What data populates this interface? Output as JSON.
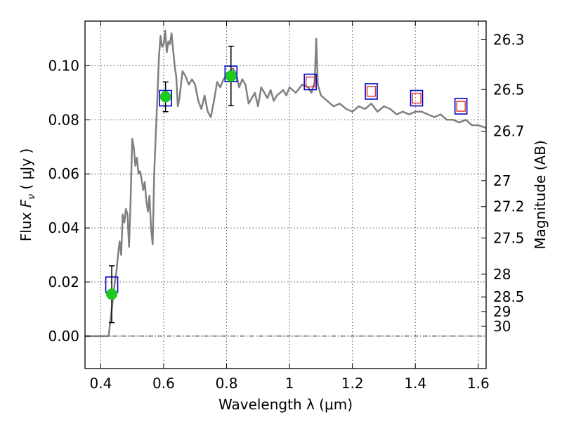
{
  "chart_data": {
    "type": "line",
    "xlabel": "Wavelength  λ (μm)",
    "ylabel": {
      "prefix": "Flux  ",
      "math": "F",
      "sub": "ν",
      "suffix": "  ( μJy )"
    },
    "y2label": "Magnitude (AB)",
    "xlim": [
      0.35,
      1.625
    ],
    "ylim": [
      -0.012,
      0.1165
    ],
    "grid": true,
    "x_ticks": [
      {
        "value": 0.4,
        "label": "0.4"
      },
      {
        "value": 0.6,
        "label": "0.6"
      },
      {
        "value": 0.8,
        "label": "0.8"
      },
      {
        "value": 1.0,
        "label": "1"
      },
      {
        "value": 1.2,
        "label": "1.2"
      },
      {
        "value": 1.4,
        "label": "1.4"
      },
      {
        "value": 1.6,
        "label": "1.6"
      }
    ],
    "y_ticks": [
      {
        "value": 0.0,
        "label": "0.00"
      },
      {
        "value": 0.02,
        "label": "0.02"
      },
      {
        "value": 0.04,
        "label": "0.04"
      },
      {
        "value": 0.06,
        "label": "0.06"
      },
      {
        "value": 0.08,
        "label": "0.08"
      },
      {
        "value": 0.1,
        "label": "0.10"
      }
    ],
    "y2_ticks": [
      {
        "label": "26.3",
        "flux": 0.1096
      },
      {
        "label": "26.5",
        "flux": 0.0912
      },
      {
        "label": "26.7",
        "flux": 0.0758
      },
      {
        "label": "27",
        "flux": 0.0575
      },
      {
        "label": "27.2",
        "flux": 0.0479
      },
      {
        "label": "27.5",
        "flux": 0.0363
      },
      {
        "label": "28",
        "flux": 0.0229
      },
      {
        "label": "28.5",
        "flux": 0.0145
      },
      {
        "label": "29",
        "flux": 0.0091
      },
      {
        "label": "30",
        "flux": 0.0036
      }
    ],
    "colors": {
      "model_line": "#808080",
      "observed": "#1ec81e",
      "model_box": "#0000cc",
      "model_box_inner": "#e03030",
      "error_bar": "#000000",
      "grid": "#555555"
    },
    "series": [
      {
        "type": "line",
        "x": [
          0.35,
          0.425,
          0.43,
          0.435,
          0.44,
          0.445,
          0.45,
          0.455,
          0.46,
          0.465,
          0.47,
          0.475,
          0.48,
          0.485,
          0.49,
          0.495,
          0.5,
          0.505,
          0.51,
          0.515,
          0.52,
          0.525,
          0.53,
          0.535,
          0.54,
          0.545,
          0.55,
          0.555,
          0.56,
          0.565,
          0.57,
          0.575,
          0.58,
          0.585,
          0.59,
          0.595,
          0.6,
          0.605,
          0.61,
          0.615,
          0.62,
          0.625,
          0.63,
          0.635,
          0.64,
          0.645,
          0.65,
          0.66,
          0.67,
          0.68,
          0.69,
          0.7,
          0.71,
          0.72,
          0.73,
          0.74,
          0.75,
          0.76,
          0.77,
          0.78,
          0.79,
          0.8,
          0.81,
          0.82,
          0.83,
          0.84,
          0.85,
          0.86,
          0.87,
          0.88,
          0.89,
          0.9,
          0.91,
          0.92,
          0.93,
          0.94,
          0.95,
          0.96,
          0.97,
          0.98,
          0.99,
          1.0,
          1.02,
          1.04,
          1.06,
          1.07,
          1.08,
          1.085,
          1.09,
          1.1,
          1.12,
          1.14,
          1.16,
          1.18,
          1.2,
          1.22,
          1.24,
          1.26,
          1.28,
          1.3,
          1.32,
          1.34,
          1.36,
          1.38,
          1.4,
          1.42,
          1.44,
          1.46,
          1.48,
          1.5,
          1.52,
          1.54,
          1.56,
          1.58,
          1.6,
          1.625
        ],
        "y": [
          0.0,
          0.0,
          0.005,
          0.01,
          0.015,
          0.02,
          0.024,
          0.03,
          0.035,
          0.03,
          0.045,
          0.042,
          0.047,
          0.045,
          0.033,
          0.05,
          0.073,
          0.07,
          0.063,
          0.066,
          0.06,
          0.061,
          0.058,
          0.054,
          0.057,
          0.05,
          0.046,
          0.052,
          0.04,
          0.034,
          0.06,
          0.075,
          0.088,
          0.103,
          0.111,
          0.107,
          0.108,
          0.113,
          0.105,
          0.109,
          0.108,
          0.112,
          0.106,
          0.1,
          0.096,
          0.085,
          0.088,
          0.098,
          0.096,
          0.093,
          0.095,
          0.093,
          0.087,
          0.084,
          0.089,
          0.083,
          0.081,
          0.087,
          0.094,
          0.092,
          0.095,
          0.096,
          0.098,
          0.099,
          0.097,
          0.092,
          0.095,
          0.093,
          0.086,
          0.088,
          0.09,
          0.085,
          0.092,
          0.09,
          0.088,
          0.091,
          0.087,
          0.089,
          0.09,
          0.091,
          0.089,
          0.092,
          0.09,
          0.093,
          0.092,
          0.09,
          0.094,
          0.11,
          0.093,
          0.089,
          0.087,
          0.085,
          0.086,
          0.084,
          0.083,
          0.085,
          0.084,
          0.086,
          0.083,
          0.085,
          0.084,
          0.082,
          0.083,
          0.082,
          0.083,
          0.083,
          0.082,
          0.081,
          0.082,
          0.08,
          0.08,
          0.079,
          0.08,
          0.078,
          0.078,
          0.077
        ]
      },
      {
        "type": "model_points",
        "x": [
          0.435,
          0.606,
          0.814,
          1.066,
          1.26,
          1.404,
          1.545
        ],
        "y": [
          0.019,
          0.088,
          0.097,
          0.094,
          0.0905,
          0.088,
          0.085
        ]
      },
      {
        "type": "observed",
        "x": [
          0.435,
          0.606,
          0.814
        ],
        "y": [
          0.0155,
          0.0885,
          0.0962
        ],
        "yerr": [
          0.0105,
          0.0055,
          0.011
        ]
      }
    ]
  }
}
